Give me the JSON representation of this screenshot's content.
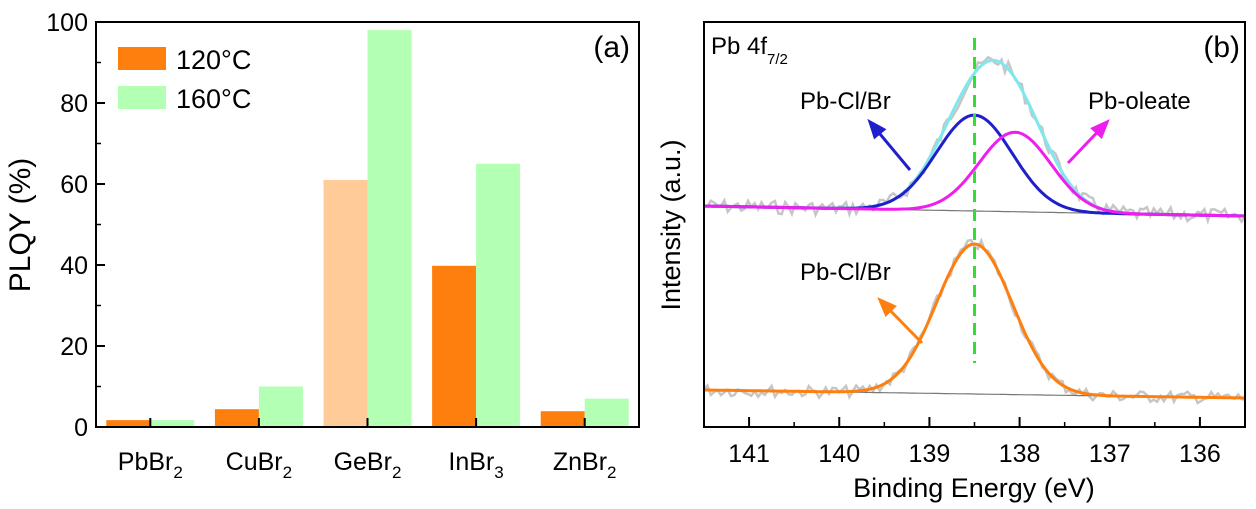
{
  "chart_data": [
    {
      "type": "bar",
      "panel_label": "(a)",
      "ylabel": "PLQY (%)",
      "ylim": [
        0,
        100
      ],
      "yticks": [
        "0",
        "20",
        "40",
        "60",
        "80",
        "100"
      ],
      "categories": [
        {
          "base": "PbBr",
          "sub": "2"
        },
        {
          "base": "CuBr",
          "sub": "2"
        },
        {
          "base": "GeBr",
          "sub": "2"
        },
        {
          "base": "InBr",
          "sub": "3"
        },
        {
          "base": "ZnBr",
          "sub": "2"
        }
      ],
      "series": [
        {
          "name": "120°C",
          "color": "#ff7f0e",
          "values": [
            1.7,
            4.4,
            61,
            39.8,
            3.9
          ],
          "highlight_color": "#ffcc99",
          "highlight_index": 2
        },
        {
          "name": "160°C",
          "color": "#b3ffb3",
          "values": [
            1.7,
            10,
            98,
            65,
            7
          ]
        }
      ],
      "legend": "top-left"
    },
    {
      "type": "line",
      "panel_label": "(b)",
      "title_main": "Pb 4f",
      "title_sub": "7/2",
      "xlabel": "Binding Energy (eV)",
      "ylabel": "Intensity (a.u.)",
      "xlim": [
        141.5,
        135.5
      ],
      "xticks": [
        "141",
        "140",
        "139",
        "138",
        "137",
        "136"
      ],
      "reference_line_x": 138.5,
      "colors": {
        "raw": "#c6c6c6",
        "background": "#777777",
        "pbclbr_upper": "#1f1fcc",
        "oleate": "#ee1fee",
        "envelope": "#7fe8ee",
        "pbclbr_lower": "#ff7f0e",
        "reference": "#33dd33"
      },
      "upper_spectrum": {
        "peaks": [
          {
            "name": "Pb-Cl/Br",
            "center": 138.5,
            "height": 0.94
          },
          {
            "name": "Pb-oleate",
            "center": 138.05,
            "height": 0.78
          }
        ]
      },
      "lower_spectrum": {
        "peaks": [
          {
            "name": "Pb-Cl/Br",
            "center": 138.5,
            "height": 1.0
          }
        ]
      },
      "annotations": {
        "upper_blue": "Pb-Cl/Br",
        "upper_magenta": "Pb-oleate",
        "lower_orange": "Pb-Cl/Br"
      }
    }
  ]
}
